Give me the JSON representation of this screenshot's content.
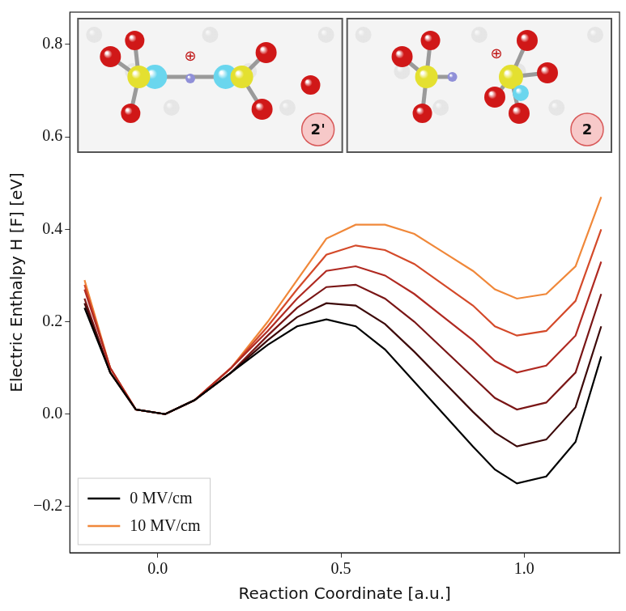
{
  "chart_data": {
    "type": "line",
    "x_label": "Reaction Coordinate [a.u.]",
    "y_label": "Electric Enthalpy H [F] [eV]",
    "x": [
      -0.2,
      -0.13,
      -0.06,
      0.02,
      0.1,
      0.2,
      0.3,
      0.38,
      0.46,
      0.54,
      0.62,
      0.7,
      0.78,
      0.86,
      0.92,
      0.98,
      1.06,
      1.14,
      1.21
    ],
    "series": [
      {
        "name": "0 MV/cm",
        "color": "#000000",
        "values": [
          0.23,
          0.09,
          0.01,
          0.0,
          0.03,
          0.09,
          0.15,
          0.19,
          0.205,
          0.19,
          0.14,
          0.07,
          0.0,
          -0.07,
          -0.12,
          -0.15,
          -0.135,
          -0.06,
          0.125
        ]
      },
      {
        "color": "#3d0a0a",
        "values": [
          0.24,
          0.09,
          0.01,
          0.0,
          0.03,
          0.09,
          0.16,
          0.21,
          0.24,
          0.235,
          0.195,
          0.135,
          0.07,
          0.005,
          -0.04,
          -0.07,
          -0.055,
          0.015,
          0.19
        ]
      },
      {
        "color": "#7a1616",
        "values": [
          0.25,
          0.09,
          0.01,
          0.0,
          0.03,
          0.09,
          0.17,
          0.23,
          0.275,
          0.28,
          0.25,
          0.2,
          0.14,
          0.08,
          0.035,
          0.01,
          0.025,
          0.09,
          0.26
        ]
      },
      {
        "color": "#b02a22",
        "values": [
          0.27,
          0.1,
          0.01,
          0.0,
          0.03,
          0.1,
          0.18,
          0.25,
          0.31,
          0.32,
          0.3,
          0.26,
          0.21,
          0.16,
          0.115,
          0.09,
          0.105,
          0.17,
          0.33
        ]
      },
      {
        "color": "#d44a2a",
        "values": [
          0.28,
          0.1,
          0.01,
          0.0,
          0.03,
          0.1,
          0.19,
          0.27,
          0.345,
          0.365,
          0.355,
          0.325,
          0.28,
          0.235,
          0.19,
          0.17,
          0.18,
          0.245,
          0.4
        ]
      },
      {
        "name": "10 MV/cm",
        "color": "#f0883a",
        "values": [
          0.29,
          0.1,
          0.01,
          0.0,
          0.03,
          0.1,
          0.2,
          0.29,
          0.38,
          0.41,
          0.41,
          0.39,
          0.35,
          0.31,
          0.27,
          0.25,
          0.26,
          0.32,
          0.47
        ]
      }
    ],
    "xlim": [
      -0.24,
      1.26
    ],
    "ylim": [
      -0.3,
      0.87
    ],
    "xticks": [
      {
        "value": 0,
        "label": "0.0"
      },
      {
        "value": 0.5,
        "label": "0.5"
      },
      {
        "value": 1,
        "label": "1.0"
      }
    ],
    "yticks": [
      {
        "value": -0.2,
        "label": "−0.2"
      },
      {
        "value": 0,
        "label": "0.0"
      },
      {
        "value": 0.2,
        "label": "0.2"
      },
      {
        "value": 0.4,
        "label": "0.4"
      },
      {
        "value": 0.6,
        "label": "0.6"
      },
      {
        "value": 0.8,
        "label": "0.8"
      }
    ],
    "grid": false,
    "legend": "lower left",
    "insets": [
      {
        "label": "2'",
        "charge": "⊕"
      },
      {
        "label": "2",
        "charge": "⊕"
      }
    ]
  }
}
